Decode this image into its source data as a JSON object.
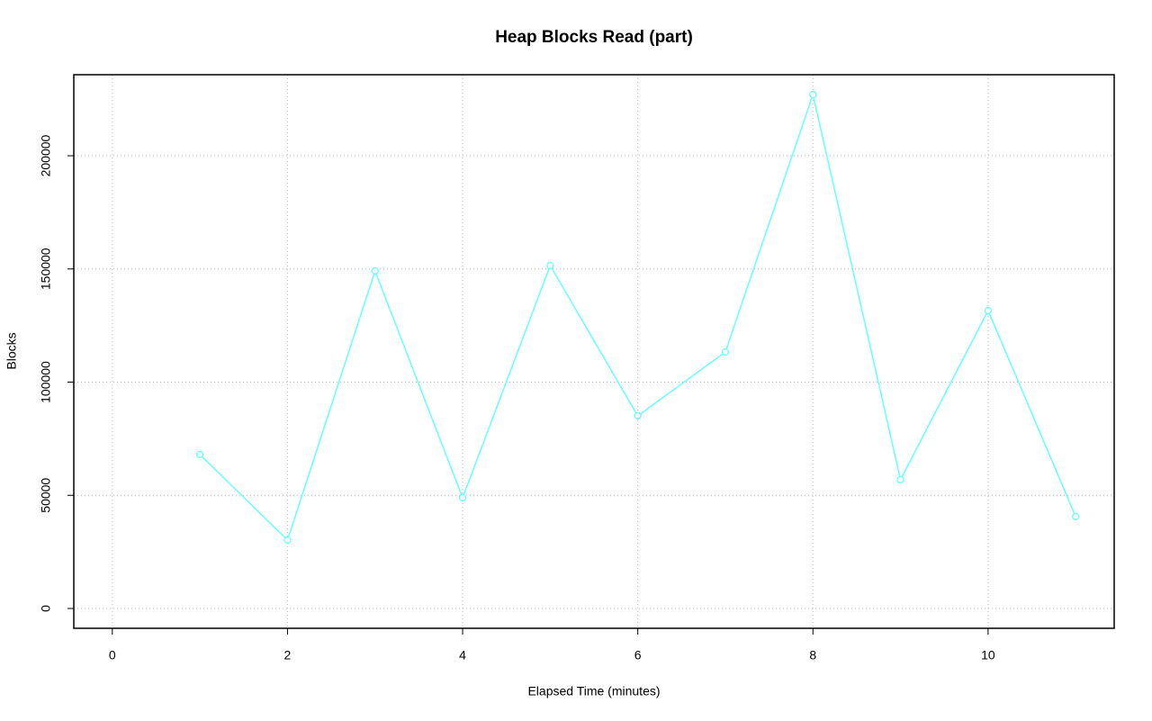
{
  "chart_data": {
    "type": "line",
    "title": "Heap Blocks Read (part)",
    "x_label": "Elapsed Time (minutes)",
    "y_label": "Blocks",
    "x": [
      1,
      2,
      3,
      4,
      5,
      6,
      7,
      8,
      9,
      10,
      11
    ],
    "values": [
      68000,
      30200,
      149100,
      48900,
      151500,
      85100,
      113300,
      227000,
      56900,
      131600,
      40600
    ],
    "color": "#66ffff",
    "xlim": [
      -0.44,
      11.44
    ],
    "xticks": [
      0,
      2,
      4,
      6,
      8,
      10
    ],
    "ylim": [
      -8750,
      235800
    ],
    "yticks": [
      0,
      50000,
      100000,
      150000,
      200000
    ],
    "grid": true
  }
}
